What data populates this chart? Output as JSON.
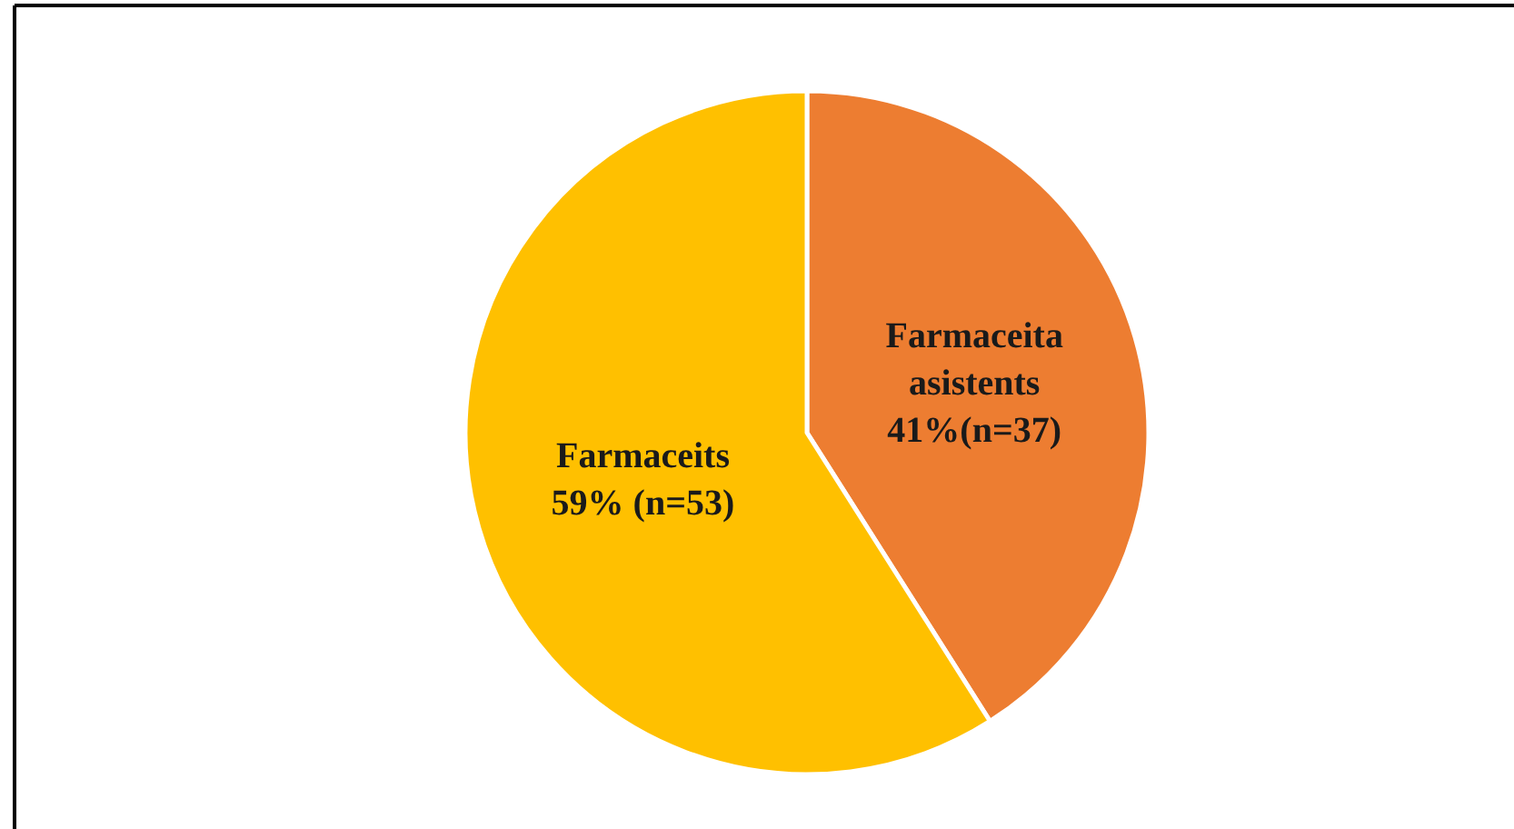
{
  "chart_data": {
    "type": "pie",
    "categories": [
      "Farmaceita asistents",
      "Farmaceits"
    ],
    "values": [
      41,
      59
    ],
    "value_labels": [
      "41%(n=37)",
      "59% (n=53)"
    ],
    "colors": [
      "#ed7d31",
      "#ffc000"
    ],
    "legend": false
  }
}
